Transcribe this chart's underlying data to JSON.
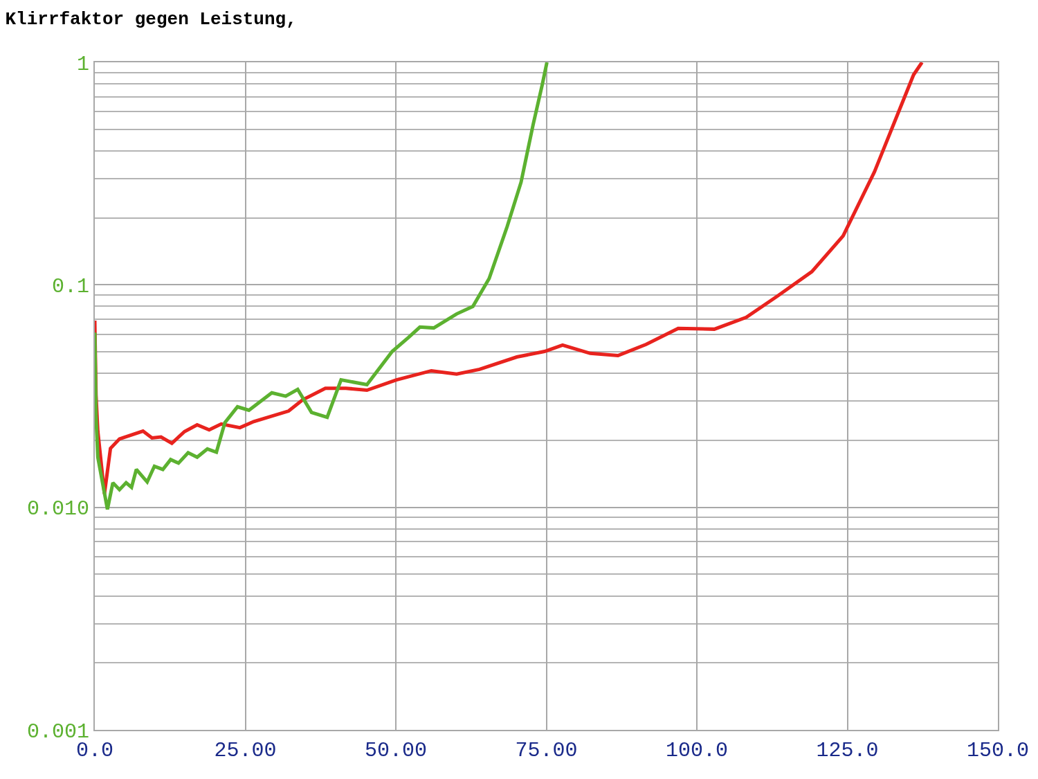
{
  "chart_data": {
    "type": "line",
    "title": "Klirrfaktor gegen Leistung,",
    "series": [
      {
        "color": "#e8231e",
        "x": [
          0,
          0.2,
          0.5,
          1.6,
          2.6,
          4.1,
          8.0,
          9.5,
          11.0,
          12.8,
          14.9,
          17.0,
          19.0,
          21.0,
          24.1,
          26.4,
          32.2,
          34.5,
          38.3,
          41.7,
          45.2,
          50.1,
          55.9,
          60.1,
          63.9,
          70.1,
          74.7,
          77.7,
          82.3,
          86.9,
          91.6,
          96.9,
          102.9,
          108.2,
          113.4,
          119.1,
          124.3,
          129.5,
          133.2,
          136.0,
          137.4
        ],
        "values": [
          0.069,
          0.032,
          0.022,
          0.0115,
          0.0184,
          0.0203,
          0.022,
          0.0205,
          0.0207,
          0.0194,
          0.0219,
          0.0235,
          0.0223,
          0.0237,
          0.0228,
          0.0243,
          0.0271,
          0.0304,
          0.0343,
          0.0343,
          0.0336,
          0.0374,
          0.0411,
          0.0397,
          0.0417,
          0.0474,
          0.0502,
          0.0536,
          0.0492,
          0.0481,
          0.054,
          0.0637,
          0.0632,
          0.0714,
          0.0891,
          0.1146,
          0.166,
          0.322,
          0.571,
          0.879,
          1.0
        ]
      },
      {
        "color": "#5cb130",
        "x": [
          0,
          0.2,
          0.5,
          2.1,
          3.0,
          4.1,
          5.2,
          6.1,
          6.9,
          8.7,
          9.9,
          11.3,
          12.6,
          13.9,
          15.5,
          17.0,
          18.7,
          20.2,
          21.6,
          23.7,
          25.6,
          29.4,
          31.7,
          33.7,
          36.0,
          38.6,
          40.9,
          45.2,
          49.4,
          52.1,
          54.0,
          56.3,
          60.1,
          62.8,
          65.5,
          68.5,
          70.8,
          72.8,
          74.3,
          75.1
        ],
        "values": [
          0.061,
          0.0258,
          0.0168,
          0.0098,
          0.0129,
          0.012,
          0.0129,
          0.0123,
          0.0148,
          0.013,
          0.0153,
          0.0148,
          0.0164,
          0.0158,
          0.0176,
          0.0168,
          0.0183,
          0.0177,
          0.024,
          0.0283,
          0.0273,
          0.0327,
          0.0316,
          0.0339,
          0.0267,
          0.0254,
          0.0374,
          0.0356,
          0.0502,
          0.058,
          0.0646,
          0.064,
          0.074,
          0.08,
          0.1067,
          0.183,
          0.289,
          0.524,
          0.789,
          1.0
        ]
      }
    ],
    "xlim": [
      0,
      150
    ],
    "xticks": [
      {
        "value": 0,
        "label": "0.0"
      },
      {
        "value": 25,
        "label": "25.00"
      },
      {
        "value": 50,
        "label": "50.00"
      },
      {
        "value": 75,
        "label": "75.00"
      },
      {
        "value": 100,
        "label": "100.0"
      },
      {
        "value": 125,
        "label": "125.0"
      },
      {
        "value": 150,
        "label": "150.0"
      }
    ],
    "ylim": [
      0.001,
      1
    ],
    "yticks": [
      {
        "value": 0.001,
        "label": "0.001"
      },
      {
        "value": 0.01,
        "label": "0.010"
      },
      0.1,
      1
    ],
    "log": "y",
    "grid": true,
    "marker": "none",
    "line_style": "solid"
  }
}
